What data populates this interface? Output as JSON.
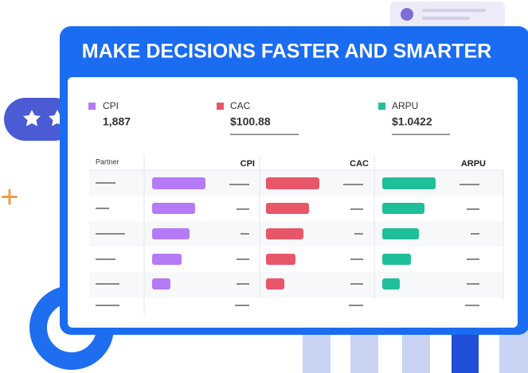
{
  "header": {
    "title": "MAKE DECISIONS FASTER AND SMARTER"
  },
  "metrics": [
    {
      "label": "CPI",
      "value": "1,887"
    },
    {
      "label": "CAC",
      "value": "$100.88"
    },
    {
      "label": "ARPU",
      "value": "$1.0422"
    }
  ],
  "table": {
    "columns": [
      "Partner",
      "CPI",
      "CAC",
      "ARPU"
    ]
  }
}
